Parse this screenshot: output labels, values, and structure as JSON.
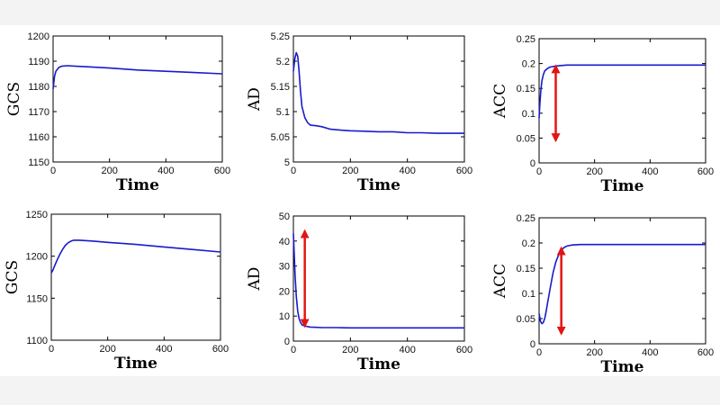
{
  "colors": {
    "line": "#1a1acc",
    "arrow": "#e31414",
    "axis": "#000000"
  },
  "chart_data": [
    {
      "type": "line",
      "xlabel": "Time",
      "ylabel": "GCS",
      "xlim": [
        0,
        600
      ],
      "ylim": [
        1150,
        1200
      ],
      "xticks": [
        "0",
        "200",
        "400",
        "600"
      ],
      "yticks": [
        "1150",
        "1160",
        "1170",
        "1180",
        "1190",
        "1200"
      ],
      "x": [
        0,
        5,
        10,
        20,
        30,
        50,
        80,
        120,
        200,
        300,
        400,
        500,
        600
      ],
      "y": [
        1179,
        1184,
        1186,
        1187.5,
        1188,
        1188.2,
        1188,
        1187.8,
        1187.3,
        1186.5,
        1186,
        1185.5,
        1185
      ],
      "arrow": null
    },
    {
      "type": "line",
      "xlabel": "Time",
      "ylabel": "AD",
      "xlim": [
        0,
        600
      ],
      "ylim": [
        5,
        5.25
      ],
      "xticks": [
        "0",
        "200",
        "400",
        "600"
      ],
      "yticks": [
        "5",
        "5.05",
        "5.1",
        "5.15",
        "5.2",
        "5.25"
      ],
      "x": [
        0,
        5,
        10,
        15,
        20,
        25,
        30,
        40,
        50,
        60,
        80,
        100,
        130,
        170,
        200,
        250,
        300,
        350,
        400,
        450,
        500,
        550,
        600
      ],
      "y": [
        5.18,
        5.205,
        5.217,
        5.21,
        5.18,
        5.14,
        5.11,
        5.088,
        5.078,
        5.073,
        5.072,
        5.07,
        5.065,
        5.063,
        5.062,
        5.061,
        5.06,
        5.06,
        5.058,
        5.058,
        5.057,
        5.057,
        5.057
      ],
      "arrow": null
    },
    {
      "type": "line",
      "xlabel": "Time",
      "ylabel": "ACC",
      "xlim": [
        0,
        600
      ],
      "ylim": [
        0,
        0.25
      ],
      "xticks": [
        "0",
        "200",
        "400",
        "600"
      ],
      "yticks": [
        "0",
        "0.05",
        "0.1",
        "0.15",
        "0.2",
        "0.25"
      ],
      "x": [
        0,
        3,
        6,
        10,
        15,
        20,
        30,
        40,
        60,
        80,
        100,
        150,
        200,
        300,
        400,
        500,
        600
      ],
      "y": [
        0.09,
        0.12,
        0.145,
        0.165,
        0.177,
        0.185,
        0.19,
        0.193,
        0.195,
        0.196,
        0.197,
        0.197,
        0.197,
        0.197,
        0.197,
        0.197,
        0.197
      ],
      "arrow": {
        "x": 60,
        "y_from": 0.045,
        "y_to": 0.195
      }
    },
    {
      "type": "line",
      "xlabel": "Time",
      "ylabel": "GCS",
      "xlim": [
        0,
        600
      ],
      "ylim": [
        1100,
        1250
      ],
      "xticks": [
        "0",
        "200",
        "400",
        "600"
      ],
      "yticks": [
        "1100",
        "1150",
        "1200",
        "1250"
      ],
      "x": [
        0,
        5,
        10,
        20,
        30,
        40,
        50,
        60,
        70,
        80,
        100,
        150,
        200,
        300,
        400,
        500,
        600
      ],
      "y": [
        1180,
        1183,
        1187,
        1195,
        1202,
        1208,
        1213,
        1216,
        1218,
        1219,
        1219,
        1218,
        1216.5,
        1214,
        1211,
        1208,
        1205
      ],
      "arrow": null
    },
    {
      "type": "line",
      "xlabel": "Time",
      "ylabel": "AD",
      "xlim": [
        0,
        600
      ],
      "ylim": [
        0,
        50
      ],
      "xticks": [
        "0",
        "200",
        "400",
        "600"
      ],
      "yticks": [
        "0",
        "10",
        "20",
        "30",
        "40",
        "50"
      ],
      "x": [
        0,
        3,
        6,
        10,
        15,
        20,
        25,
        30,
        40,
        50,
        60,
        80,
        100,
        150,
        200,
        300,
        400,
        500,
        600
      ],
      "y": [
        43,
        35,
        26,
        18,
        12,
        9,
        7.5,
        6.5,
        6,
        5.8,
        5.6,
        5.5,
        5.4,
        5.4,
        5.3,
        5.3,
        5.3,
        5.3,
        5.3
      ],
      "arrow": {
        "x": 40,
        "y_from": 6,
        "y_to": 44
      }
    },
    {
      "type": "line",
      "xlabel": "Time",
      "ylabel": "ACC",
      "xlim": [
        0,
        600
      ],
      "ylim": [
        0,
        0.25
      ],
      "xticks": [
        "0",
        "200",
        "400",
        "600"
      ],
      "yticks": [
        "0",
        "0.05",
        "0.1",
        "0.15",
        "0.2",
        "0.25"
      ],
      "x": [
        0,
        5,
        10,
        15,
        20,
        25,
        30,
        40,
        50,
        60,
        70,
        80,
        90,
        100,
        120,
        150,
        200,
        300,
        400,
        500,
        600
      ],
      "y": [
        0.06,
        0.045,
        0.04,
        0.042,
        0.05,
        0.063,
        0.08,
        0.11,
        0.14,
        0.162,
        0.176,
        0.186,
        0.191,
        0.194,
        0.196,
        0.197,
        0.197,
        0.197,
        0.197,
        0.197,
        0.197
      ],
      "arrow": {
        "x": 80,
        "y_from": 0.02,
        "y_to": 0.19
      }
    }
  ]
}
